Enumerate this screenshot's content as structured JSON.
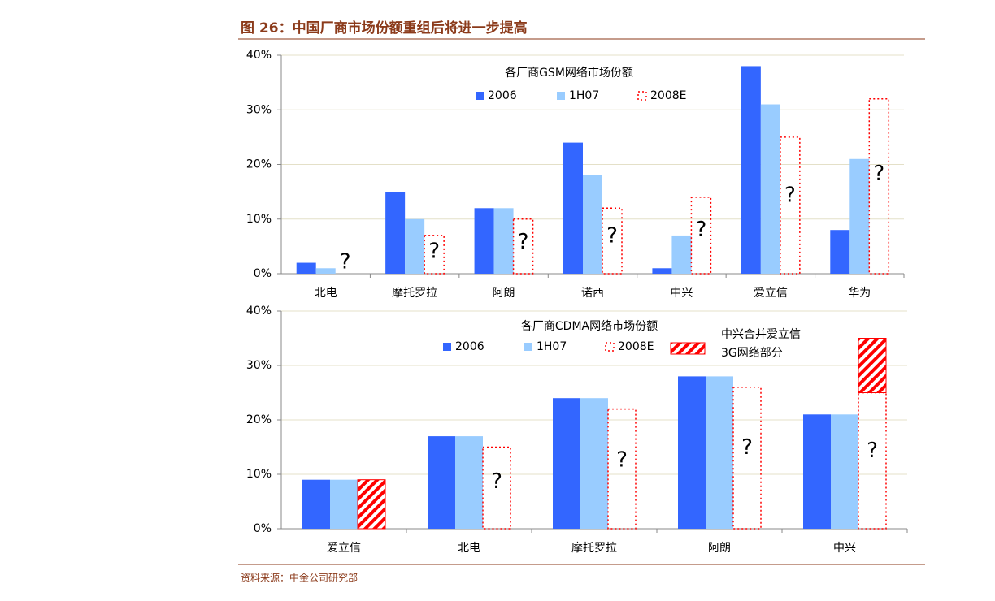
{
  "title": "图 26：中国厂商市场份额重组后将进一步提高",
  "source": "资料来源：中金公司研究部",
  "chart_data": [
    {
      "type": "bar",
      "legend_title": "各厂商GSM网络市场份额",
      "categories": [
        "北电",
        "摩托罗拉",
        "阿朗",
        "诺西",
        "中兴",
        "爱立信",
        "华为"
      ],
      "unknown_label": "?",
      "series": [
        {
          "name": "2006",
          "color": "#3366ff",
          "style": "solid",
          "values": [
            2,
            15,
            12,
            24,
            1,
            38,
            8
          ]
        },
        {
          "name": "1H07",
          "color": "#99ccff",
          "style": "solid",
          "values": [
            1,
            10,
            12,
            18,
            7,
            31,
            21
          ]
        },
        {
          "name": "2008E",
          "color": "#ff0000",
          "style": "dotted",
          "values": [
            null,
            7,
            10,
            12,
            14,
            25,
            32
          ]
        }
      ],
      "ylim": [
        0,
        40
      ],
      "yticks": [
        {
          "value": 0,
          "label": "0%"
        },
        {
          "value": 10,
          "label": "10%"
        },
        {
          "value": 20,
          "label": "20%"
        },
        {
          "value": 30,
          "label": "30%"
        },
        {
          "value": 40,
          "label": "40%"
        }
      ],
      "grid": true
    },
    {
      "type": "bar",
      "legend_title": "各厂商CDMA网络市场份额",
      "categories": [
        "爱立信",
        "北电",
        "摩托罗拉",
        "阿朗",
        "中兴"
      ],
      "unknown_label": "?",
      "series": [
        {
          "name": "2006",
          "color": "#3366ff",
          "style": "solid",
          "values": [
            9,
            17,
            24,
            28,
            21
          ]
        },
        {
          "name": "1H07",
          "color": "#99ccff",
          "style": "solid",
          "values": [
            9,
            17,
            24,
            28,
            21
          ]
        },
        {
          "name": "2008E",
          "color": "#ff0000",
          "style": "dotted",
          "values": [
            null,
            15,
            22,
            26,
            25
          ]
        },
        {
          "name": "中兴合并爱立信\n3G网络部分",
          "color": "#ff0000",
          "style": "hatched",
          "stacked": true,
          "values": [
            9,
            null,
            null,
            null,
            10
          ]
        }
      ],
      "ylim": [
        0,
        40
      ],
      "yticks": [
        {
          "value": 0,
          "label": "0%"
        },
        {
          "value": 10,
          "label": "10%"
        },
        {
          "value": 20,
          "label": "20%"
        },
        {
          "value": 30,
          "label": "30%"
        },
        {
          "value": 40,
          "label": "40%"
        }
      ],
      "grid": true
    }
  ]
}
